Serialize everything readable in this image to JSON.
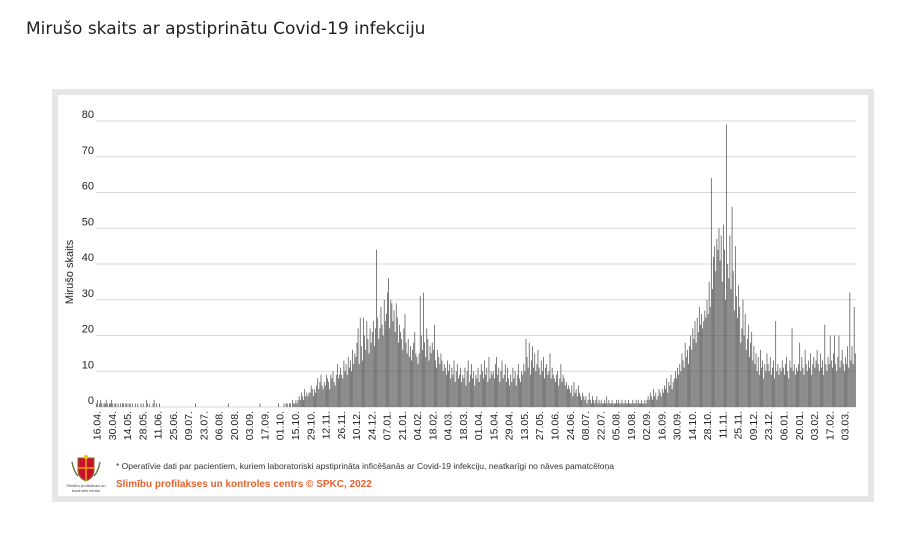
{
  "page": {
    "title": "Mirušo skaits ar apstiprinātu Covid-19 infekciju"
  },
  "chart_data": {
    "type": "bar",
    "ylabel": "Mirušo skaits",
    "xlabel": "",
    "ylim": [
      0,
      80
    ],
    "yticks": [
      0,
      10,
      20,
      30,
      40,
      50,
      60,
      70,
      80
    ],
    "grid": true,
    "legend": "none",
    "bar_color": "#555555",
    "x_tick_labels": [
      "16.04.",
      "30.04.",
      "14.05.",
      "28.05.",
      "11.06.",
      "25.06.",
      "09.07.",
      "23.07.",
      "06.08.",
      "20.08.",
      "03.09.",
      "17.09.",
      "01.10.",
      "15.10.",
      "29.10.",
      "12.11.",
      "26.11.",
      "10.12.",
      "24.12.",
      "07.01.",
      "21.01.",
      "04.02.",
      "18.02.",
      "04.03.",
      "18.03.",
      "01.04.",
      "15.04.",
      "29.04.",
      "13.05.",
      "27.05.",
      "10.06.",
      "24.06.",
      "08.07.",
      "22.07.",
      "05.08.",
      "19.08.",
      "02.09.",
      "16.09.",
      "30.09.",
      "14.10.",
      "28.10.",
      "11.11.",
      "25.11.",
      "09.12.",
      "23.12.",
      "06.01.",
      "20.01.",
      "03.02.",
      "17.02.",
      "03.03."
    ],
    "values_per_period": [
      [
        1,
        2,
        0,
        1,
        2,
        1,
        0,
        1,
        1,
        2,
        1,
        0,
        1,
        1
      ],
      [
        2,
        1,
        0,
        1,
        1,
        0,
        1,
        0,
        1,
        0,
        1,
        1,
        0,
        1
      ],
      [
        1,
        0,
        1,
        1,
        0,
        1,
        0,
        0,
        1,
        0,
        1,
        0,
        0,
        1
      ],
      [
        0,
        1,
        0,
        0,
        2,
        1,
        0,
        1,
        0,
        0,
        1,
        2,
        0,
        1
      ],
      [
        0,
        0,
        1,
        0,
        0,
        0,
        0,
        0,
        0,
        0,
        0,
        0,
        0,
        0
      ],
      [
        0,
        0,
        0,
        0,
        0,
        0,
        0,
        0,
        0,
        0,
        0,
        0,
        0,
        0
      ],
      [
        0,
        0,
        0,
        0,
        0,
        0,
        0,
        1,
        0,
        0,
        0,
        0,
        0,
        0
      ],
      [
        0,
        0,
        0,
        0,
        0,
        0,
        0,
        0,
        0,
        0,
        0,
        0,
        0,
        0
      ],
      [
        0,
        0,
        0,
        0,
        0,
        0,
        0,
        0,
        0,
        1,
        0,
        0,
        0,
        0
      ],
      [
        0,
        0,
        0,
        0,
        0,
        0,
        0,
        0,
        0,
        0,
        0,
        0,
        0,
        0
      ],
      [
        0,
        0,
        0,
        0,
        0,
        0,
        0,
        0,
        0,
        0,
        1,
        0,
        0,
        0
      ],
      [
        0,
        0,
        0,
        0,
        0,
        0,
        0,
        0,
        0,
        0,
        0,
        0,
        0,
        1
      ],
      [
        0,
        0,
        0,
        0,
        1,
        0,
        1,
        1,
        0,
        1,
        1,
        0,
        2,
        1
      ],
      [
        1,
        2,
        1,
        2,
        3,
        2,
        4,
        3,
        2,
        5,
        3,
        4,
        3,
        4
      ],
      [
        4,
        6,
        5,
        3,
        5,
        4,
        6,
        8,
        5,
        7,
        9,
        6,
        5,
        7
      ],
      [
        6,
        9,
        8,
        7,
        5,
        9,
        8,
        10,
        7,
        6,
        9,
        12,
        8,
        9
      ],
      [
        11,
        9,
        8,
        13,
        10,
        12,
        9,
        14,
        11,
        13,
        10,
        16,
        12,
        15
      ],
      [
        14,
        18,
        22,
        12,
        25,
        17,
        13,
        25,
        20,
        16,
        24,
        19,
        15,
        22
      ],
      [
        18,
        21,
        24,
        17,
        22,
        44,
        25,
        19,
        22,
        28,
        23,
        20,
        30,
        24
      ],
      [
        26,
        32,
        36,
        22,
        30,
        29,
        24,
        27,
        21,
        29,
        25,
        18,
        23,
        21
      ],
      [
        19,
        16,
        22,
        26,
        18,
        15,
        19,
        14,
        17,
        13,
        16,
        18,
        21,
        15
      ],
      [
        14,
        12,
        15,
        31,
        20,
        16,
        32,
        18,
        14,
        22,
        19,
        13,
        17,
        15
      ],
      [
        18,
        16,
        23,
        13,
        11,
        16,
        14,
        12,
        15,
        13,
        10,
        12,
        11,
        9
      ],
      [
        13,
        10,
        12,
        8,
        11,
        9,
        13,
        7,
        10,
        12,
        8,
        9,
        11,
        7
      ],
      [
        9,
        8,
        11,
        6,
        10,
        13,
        7,
        9,
        12,
        8,
        10,
        6,
        9,
        8
      ],
      [
        11,
        7,
        9,
        12,
        10,
        8,
        13,
        9,
        11,
        7,
        14,
        8,
        10,
        9
      ],
      [
        10,
        8,
        12,
        14,
        9,
        11,
        7,
        10,
        13,
        8,
        9,
        12,
        7,
        11
      ],
      [
        8,
        6,
        9,
        7,
        11,
        8,
        10,
        6,
        9,
        12,
        8,
        7,
        10,
        9
      ],
      [
        12,
        10,
        19,
        14,
        11,
        18,
        9,
        13,
        17,
        11,
        15,
        10,
        12,
        16
      ],
      [
        11,
        9,
        13,
        10,
        14,
        8,
        11,
        12,
        9,
        10,
        15,
        8,
        11,
        9
      ],
      [
        8,
        7,
        9,
        10,
        6,
        8,
        12,
        7,
        9,
        8,
        6,
        7,
        5,
        6
      ],
      [
        5,
        4,
        6,
        3,
        7,
        4,
        5,
        3,
        6,
        4,
        3,
        2,
        4,
        3
      ],
      [
        2,
        3,
        1,
        2,
        4,
        2,
        1,
        3,
        2,
        1,
        2,
        3,
        1,
        2
      ],
      [
        1,
        2,
        1,
        1,
        2,
        1,
        3,
        1,
        2,
        1,
        1,
        2,
        1,
        1
      ],
      [
        1,
        2,
        1,
        2,
        1,
        1,
        2,
        1,
        1,
        2,
        1,
        1,
        2,
        1
      ],
      [
        1,
        1,
        2,
        1,
        1,
        2,
        1,
        2,
        1,
        1,
        2,
        1,
        1,
        2
      ],
      [
        1,
        2,
        3,
        2,
        4,
        3,
        2,
        5,
        3,
        4,
        2,
        3,
        5,
        4
      ],
      [
        3,
        5,
        4,
        6,
        5,
        8,
        4,
        7,
        6,
        9,
        5,
        7,
        8,
        10
      ],
      [
        8,
        11,
        9,
        12,
        10,
        15,
        13,
        11,
        18,
        14,
        16,
        12,
        17,
        20
      ],
      [
        16,
        22,
        19,
        24,
        18,
        25,
        21,
        28,
        23,
        26,
        22,
        24,
        27,
        25
      ],
      [
        30,
        26,
        35,
        28,
        64,
        33,
        42,
        45,
        38,
        47,
        44,
        50,
        41,
        48
      ],
      [
        35,
        51,
        44,
        30,
        79,
        40,
        36,
        48,
        33,
        56,
        38,
        27,
        45,
        31
      ],
      [
        25,
        34,
        28,
        18,
        22,
        30,
        20,
        26,
        16,
        19,
        23,
        14,
        18,
        21
      ],
      [
        13,
        17,
        12,
        15,
        10,
        14,
        9,
        16,
        11,
        13,
        8,
        12,
        10,
        15
      ],
      [
        12,
        10,
        14,
        9,
        11,
        13,
        8,
        24,
        10,
        12,
        9,
        11,
        10,
        13
      ],
      [
        11,
        9,
        12,
        14,
        10,
        8,
        13,
        11,
        22,
        10,
        12,
        9,
        11,
        10
      ],
      [
        12,
        18,
        10,
        14,
        11,
        9,
        16,
        12,
        10,
        13,
        11,
        15,
        9,
        12
      ],
      [
        14,
        11,
        13,
        16,
        12,
        10,
        15,
        11,
        13,
        9,
        23,
        12,
        10,
        14
      ],
      [
        12,
        20,
        13,
        11,
        15,
        20,
        12,
        10,
        14,
        20,
        11,
        13,
        16,
        12
      ],
      [
        10,
        14,
        12,
        17,
        11,
        32,
        13,
        17,
        12,
        28,
        15
      ]
    ]
  },
  "footnote": "* Operatīvie dati par pacientiem, kuriem laboratoriski apstiprināta inficēšanās ar Covid-19 infekciju, neatkarīgi no nāves pamatcēloņa",
  "source": "Slimību profilakses un kontroles centrs © SPKC, 2022",
  "logo": {
    "caption": "Slimību profilakses un kontroles centrs",
    "icon": "coat-of-arms-icon"
  }
}
